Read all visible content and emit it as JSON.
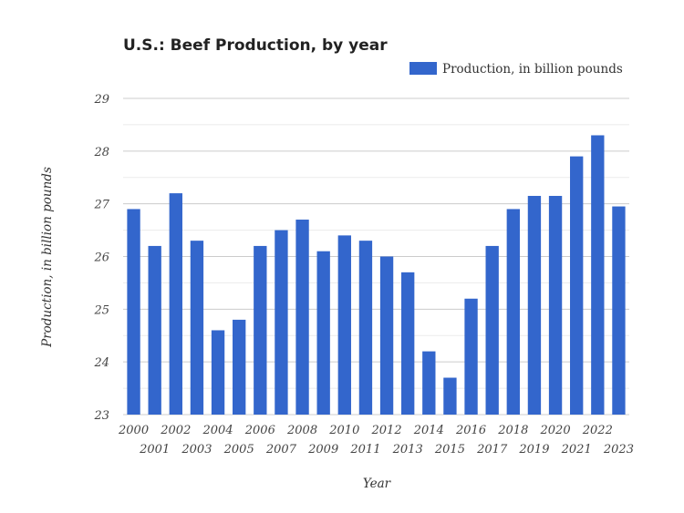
{
  "chart_data": {
    "type": "bar",
    "title": "U.S.: Beef Production, by year",
    "xlabel": "Year",
    "ylabel": "Production, in billion pounds",
    "ylim": [
      23,
      29
    ],
    "yticks": [
      23,
      24,
      25,
      26,
      27,
      28,
      29
    ],
    "grid": true,
    "legend_position": "top-right",
    "bar_color": "#3366cc",
    "series": [
      {
        "name": "Production, in billion pounds",
        "values": [
          26.9,
          26.2,
          27.2,
          26.3,
          24.6,
          24.8,
          26.2,
          26.5,
          26.7,
          26.1,
          26.4,
          26.3,
          26.0,
          25.7,
          24.2,
          23.7,
          25.2,
          26.2,
          26.9,
          27.15,
          27.15,
          27.9,
          28.3,
          26.95
        ]
      }
    ],
    "categories": [
      "2000",
      "2001",
      "2002",
      "2003",
      "2004",
      "2005",
      "2006",
      "2007",
      "2008",
      "2009",
      "2010",
      "2011",
      "2012",
      "2013",
      "2014",
      "2015",
      "2016",
      "2017",
      "2018",
      "2019",
      "2020",
      "2021",
      "2022",
      "2023"
    ]
  }
}
